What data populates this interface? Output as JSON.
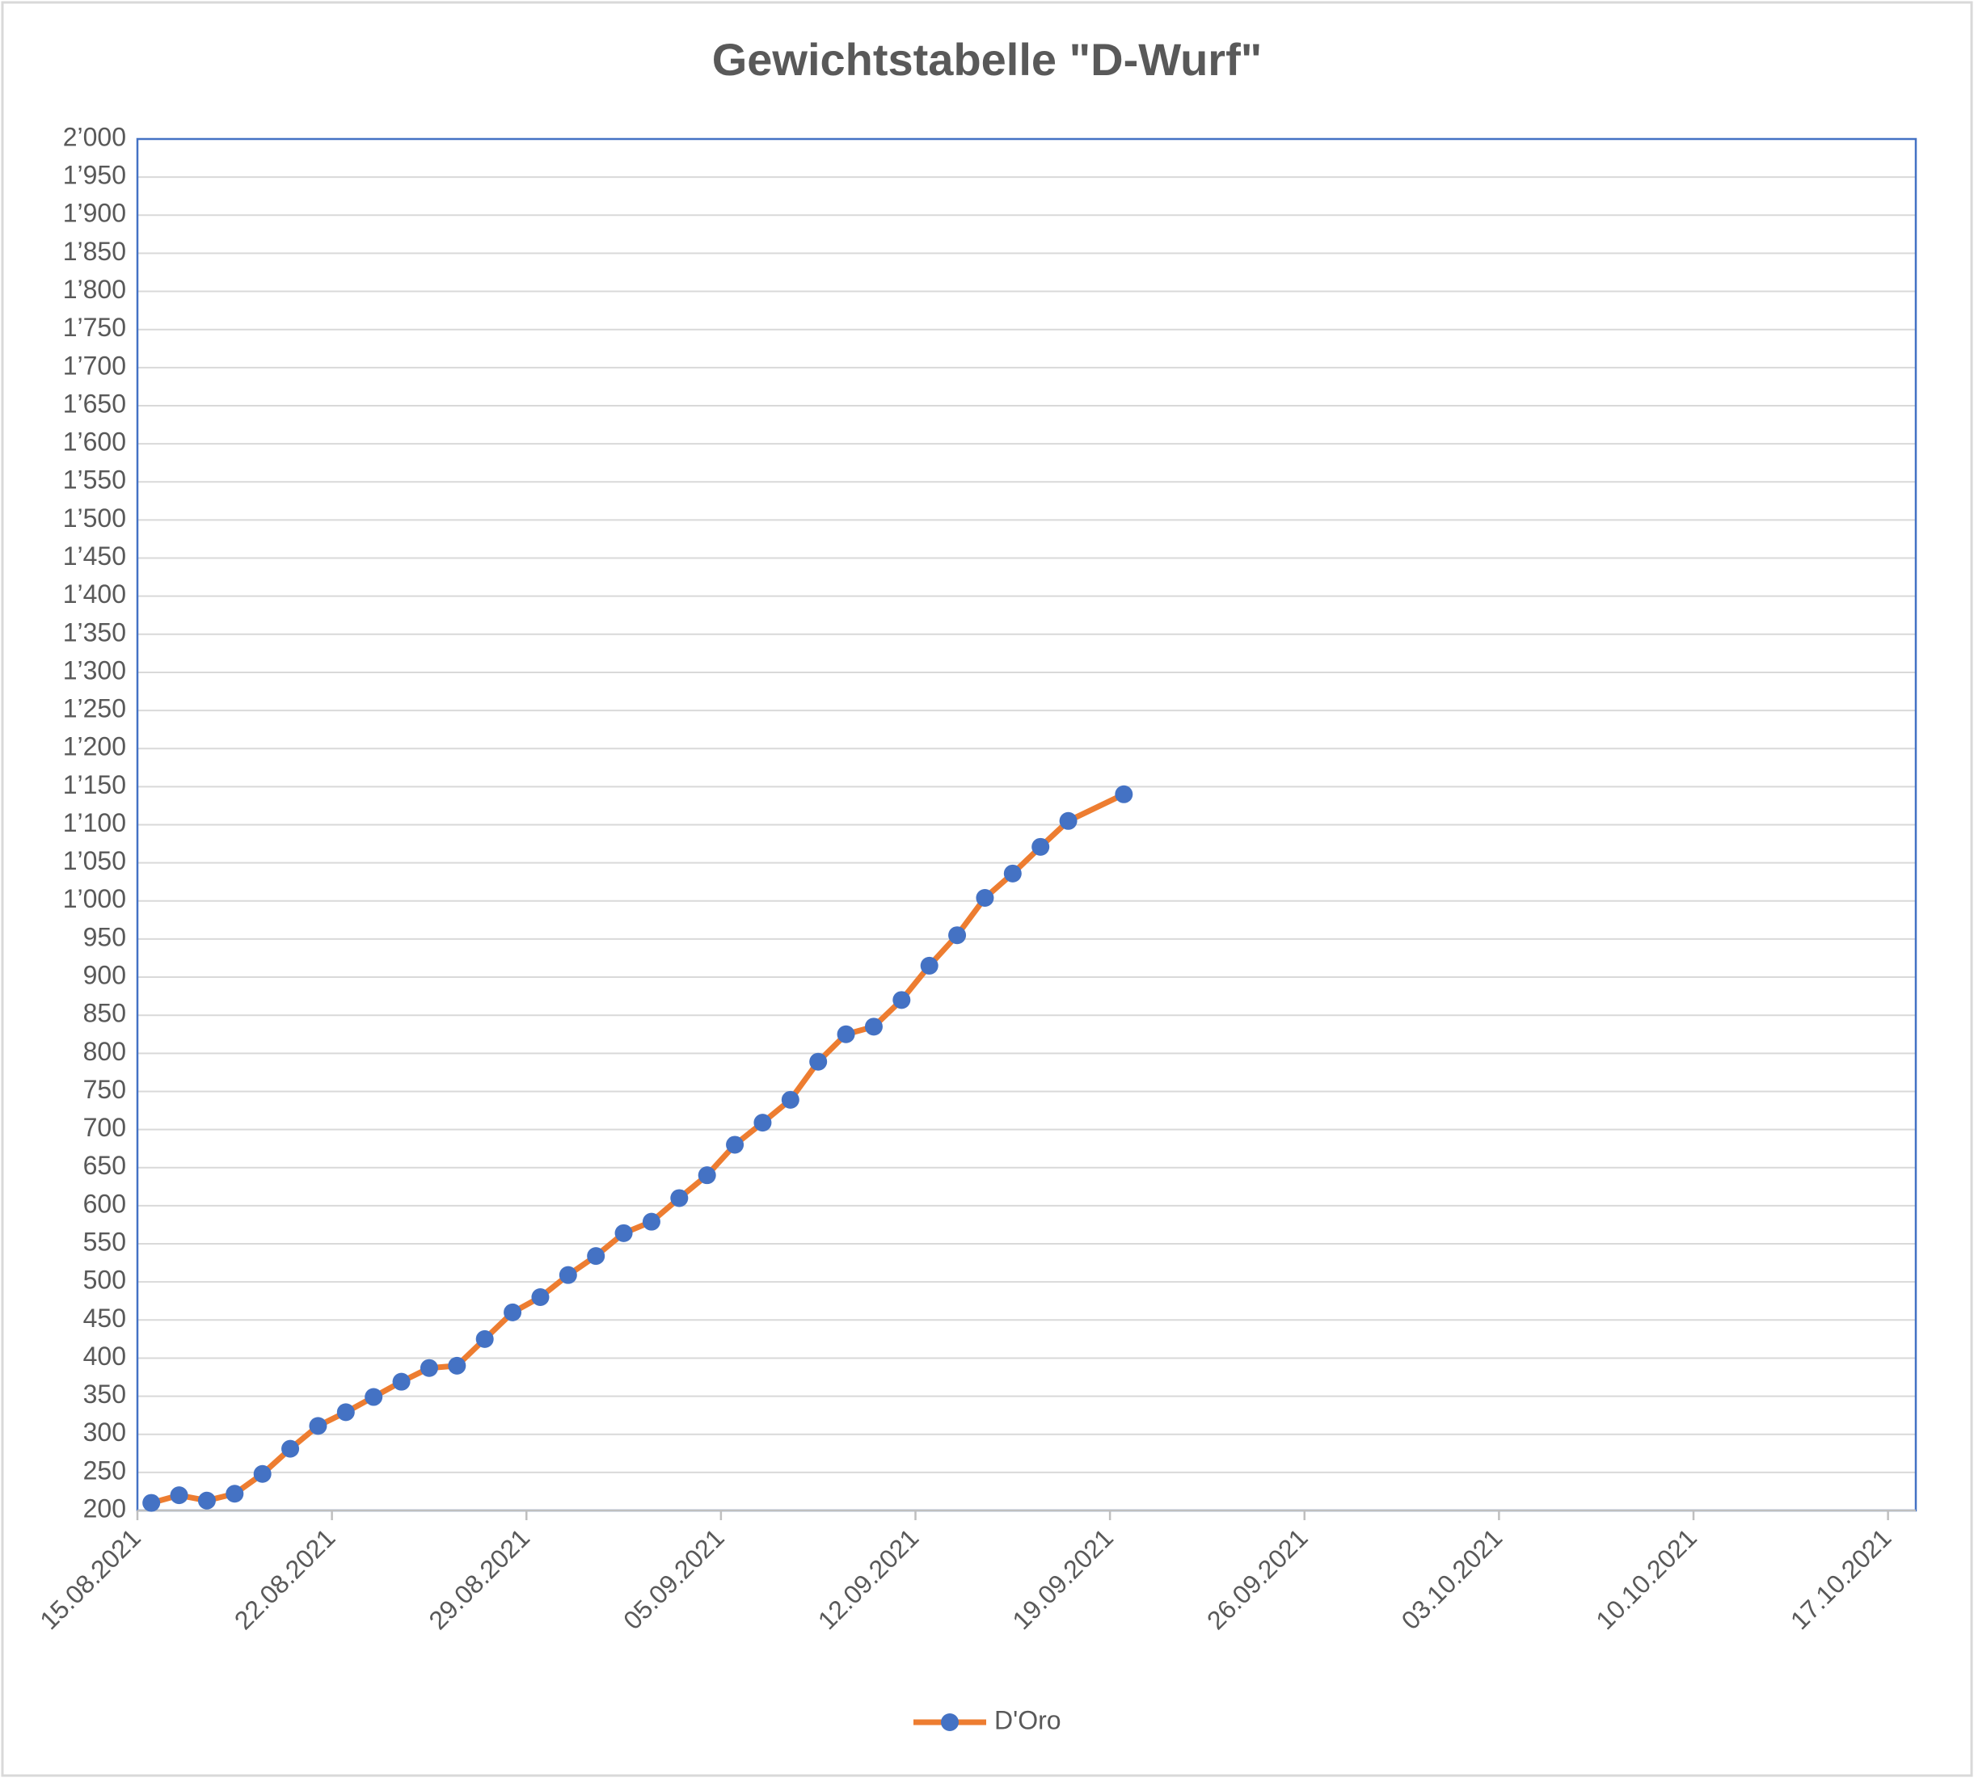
{
  "chart_data": {
    "type": "line",
    "title": "Gewichtstabelle \"D-Wurf\"",
    "x": [
      "15.08.2021",
      "16.08.2021",
      "17.08.2021",
      "18.08.2021",
      "19.08.2021",
      "20.08.2021",
      "21.08.2021",
      "22.08.2021",
      "23.08.2021",
      "24.08.2021",
      "25.08.2021",
      "26.08.2021",
      "27.08.2021",
      "28.08.2021",
      "29.08.2021",
      "30.08.2021",
      "31.08.2021",
      "01.09.2021",
      "02.09.2021",
      "03.09.2021",
      "04.09.2021",
      "05.09.2021",
      "06.09.2021",
      "07.09.2021",
      "08.09.2021",
      "09.09.2021",
      "10.09.2021",
      "11.09.2021",
      "12.09.2021",
      "13.09.2021",
      "14.09.2021",
      "15.09.2021",
      "16.09.2021",
      "17.09.2021",
      "19.09.2021"
    ],
    "series": [
      {
        "name": "D'Oro",
        "color": "#ed7d31",
        "marker_color": "#4472c4",
        "values": [
          210,
          220,
          213,
          222,
          248,
          281,
          311,
          329,
          349,
          369,
          387,
          390,
          425,
          460,
          480,
          509,
          534,
          564,
          579,
          610,
          640,
          680,
          709,
          739,
          789,
          825,
          835,
          870,
          915,
          955,
          1004,
          1036,
          1071,
          1105,
          1140
        ]
      }
    ],
    "xlim": [
      "15.08.2021",
      "17.10.2021"
    ],
    "xticks": [
      "15.08.2021",
      "22.08.2021",
      "29.08.2021",
      "05.09.2021",
      "12.09.2021",
      "19.09.2021",
      "26.09.2021",
      "03.10.2021",
      "10.10.2021",
      "17.10.2021"
    ],
    "ylim": [
      200,
      2000
    ],
    "yticks": [
      200,
      250,
      300,
      350,
      400,
      450,
      500,
      550,
      600,
      650,
      700,
      750,
      800,
      850,
      900,
      950,
      {
        "value": 1000,
        "label": "1’000"
      },
      {
        "value": 1050,
        "label": "1’050"
      },
      {
        "value": 1100,
        "label": "1’100"
      },
      {
        "value": 1150,
        "label": "1’150"
      },
      {
        "value": 1200,
        "label": "1’200"
      },
      {
        "value": 1250,
        "label": "1’250"
      },
      {
        "value": 1300,
        "label": "1’300"
      },
      {
        "value": 1350,
        "label": "1’350"
      },
      {
        "value": 1400,
        "label": "1’400"
      },
      {
        "value": 1450,
        "label": "1’450"
      },
      {
        "value": 1500,
        "label": "1’500"
      },
      {
        "value": 1550,
        "label": "1’550"
      },
      {
        "value": 1600,
        "label": "1’600"
      },
      {
        "value": 1650,
        "label": "1’650"
      },
      {
        "value": 1700,
        "label": "1’700"
      },
      {
        "value": 1750,
        "label": "1’750"
      },
      {
        "value": 1800,
        "label": "1’800"
      },
      {
        "value": 1850,
        "label": "1’850"
      },
      {
        "value": 1900,
        "label": "1’900"
      },
      {
        "value": 1950,
        "label": "1’950"
      },
      {
        "value": 2000,
        "label": "2’000"
      }
    ],
    "grid": true,
    "legend": "bottom"
  }
}
